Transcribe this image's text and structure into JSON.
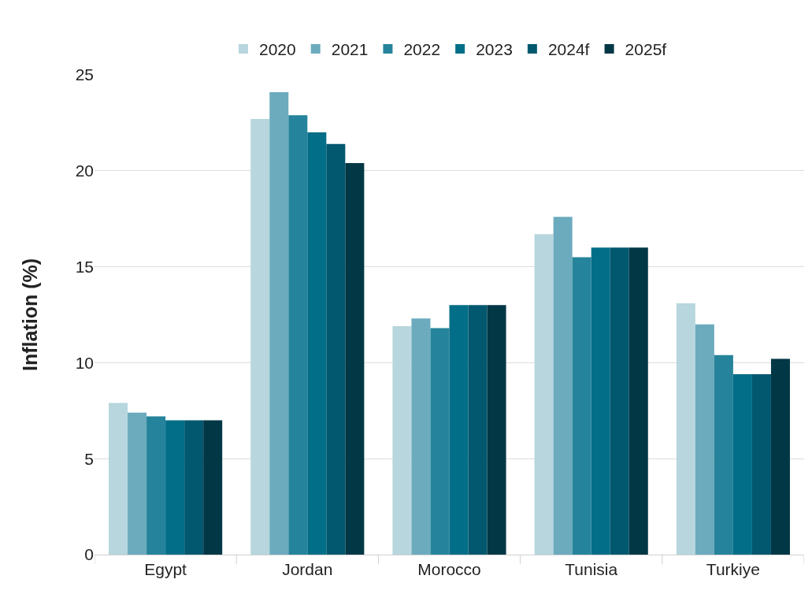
{
  "chart_data": {
    "type": "bar",
    "ylabel": "Inflation (%)",
    "categories": [
      "Egypt",
      "Jordan",
      "Morocco",
      "Tunisia",
      "Turkiye"
    ],
    "series": [
      {
        "name": "2020",
        "color": "#b7d6de",
        "values": [
          7.9,
          22.7,
          11.9,
          16.7,
          13.1
        ]
      },
      {
        "name": "2021",
        "color": "#6babbd",
        "values": [
          7.4,
          24.1,
          12.3,
          17.6,
          12.0
        ]
      },
      {
        "name": "2022",
        "color": "#25849b",
        "values": [
          7.2,
          22.9,
          11.8,
          15.5,
          10.4
        ]
      },
      {
        "name": "2023",
        "color": "#036e88",
        "values": [
          7.0,
          22.0,
          13.0,
          16.0,
          9.4
        ]
      },
      {
        "name": "2024f",
        "color": "#02586f",
        "values": [
          7.0,
          21.4,
          13.0,
          16.0,
          9.4
        ]
      },
      {
        "name": "2025f",
        "color": "#023746",
        "values": [
          7.0,
          20.4,
          13.0,
          16.0,
          10.2
        ]
      }
    ],
    "ylim": [
      0,
      25
    ],
    "yticks": [
      0,
      5,
      10,
      15,
      20,
      25
    ],
    "grid": "y",
    "legend": "top"
  }
}
